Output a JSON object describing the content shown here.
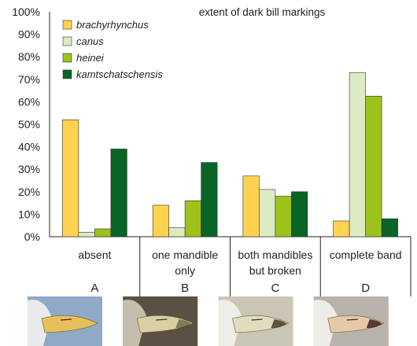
{
  "chart_data": {
    "type": "bar",
    "title": "extent of dark bill markings",
    "y_ticks": [
      "0%",
      "10%",
      "20%",
      "30%",
      "40%",
      "50%",
      "60%",
      "70%",
      "80%",
      "90%",
      "100%"
    ],
    "ylim": [
      0,
      100
    ],
    "categories": [
      {
        "lines": [
          "absent"
        ],
        "letter": "A"
      },
      {
        "lines": [
          "one mandible",
          "only"
        ],
        "letter": "B"
      },
      {
        "lines": [
          "both mandibles",
          "but broken"
        ],
        "letter": "C"
      },
      {
        "lines": [
          "complete band"
        ],
        "letter": "D"
      }
    ],
    "series": [
      {
        "name": "brachyrhynchus",
        "color": "#FFD34F",
        "values": [
          52,
          14,
          27,
          7
        ]
      },
      {
        "name": "canus",
        "color": "#DDEBC4",
        "values": [
          2,
          4,
          21,
          73
        ]
      },
      {
        "name": "heinei",
        "color": "#9DC21A",
        "values": [
          3.5,
          16,
          18,
          62.5
        ]
      },
      {
        "name": "kamtschatschensis",
        "color": "#0A6428",
        "values": [
          39,
          33,
          20,
          8
        ]
      }
    ],
    "legend_position": "top-left",
    "bill_photos": [
      "bill-photo-a-icon",
      "bill-photo-b-icon",
      "bill-photo-c-icon",
      "bill-photo-d-icon"
    ]
  }
}
